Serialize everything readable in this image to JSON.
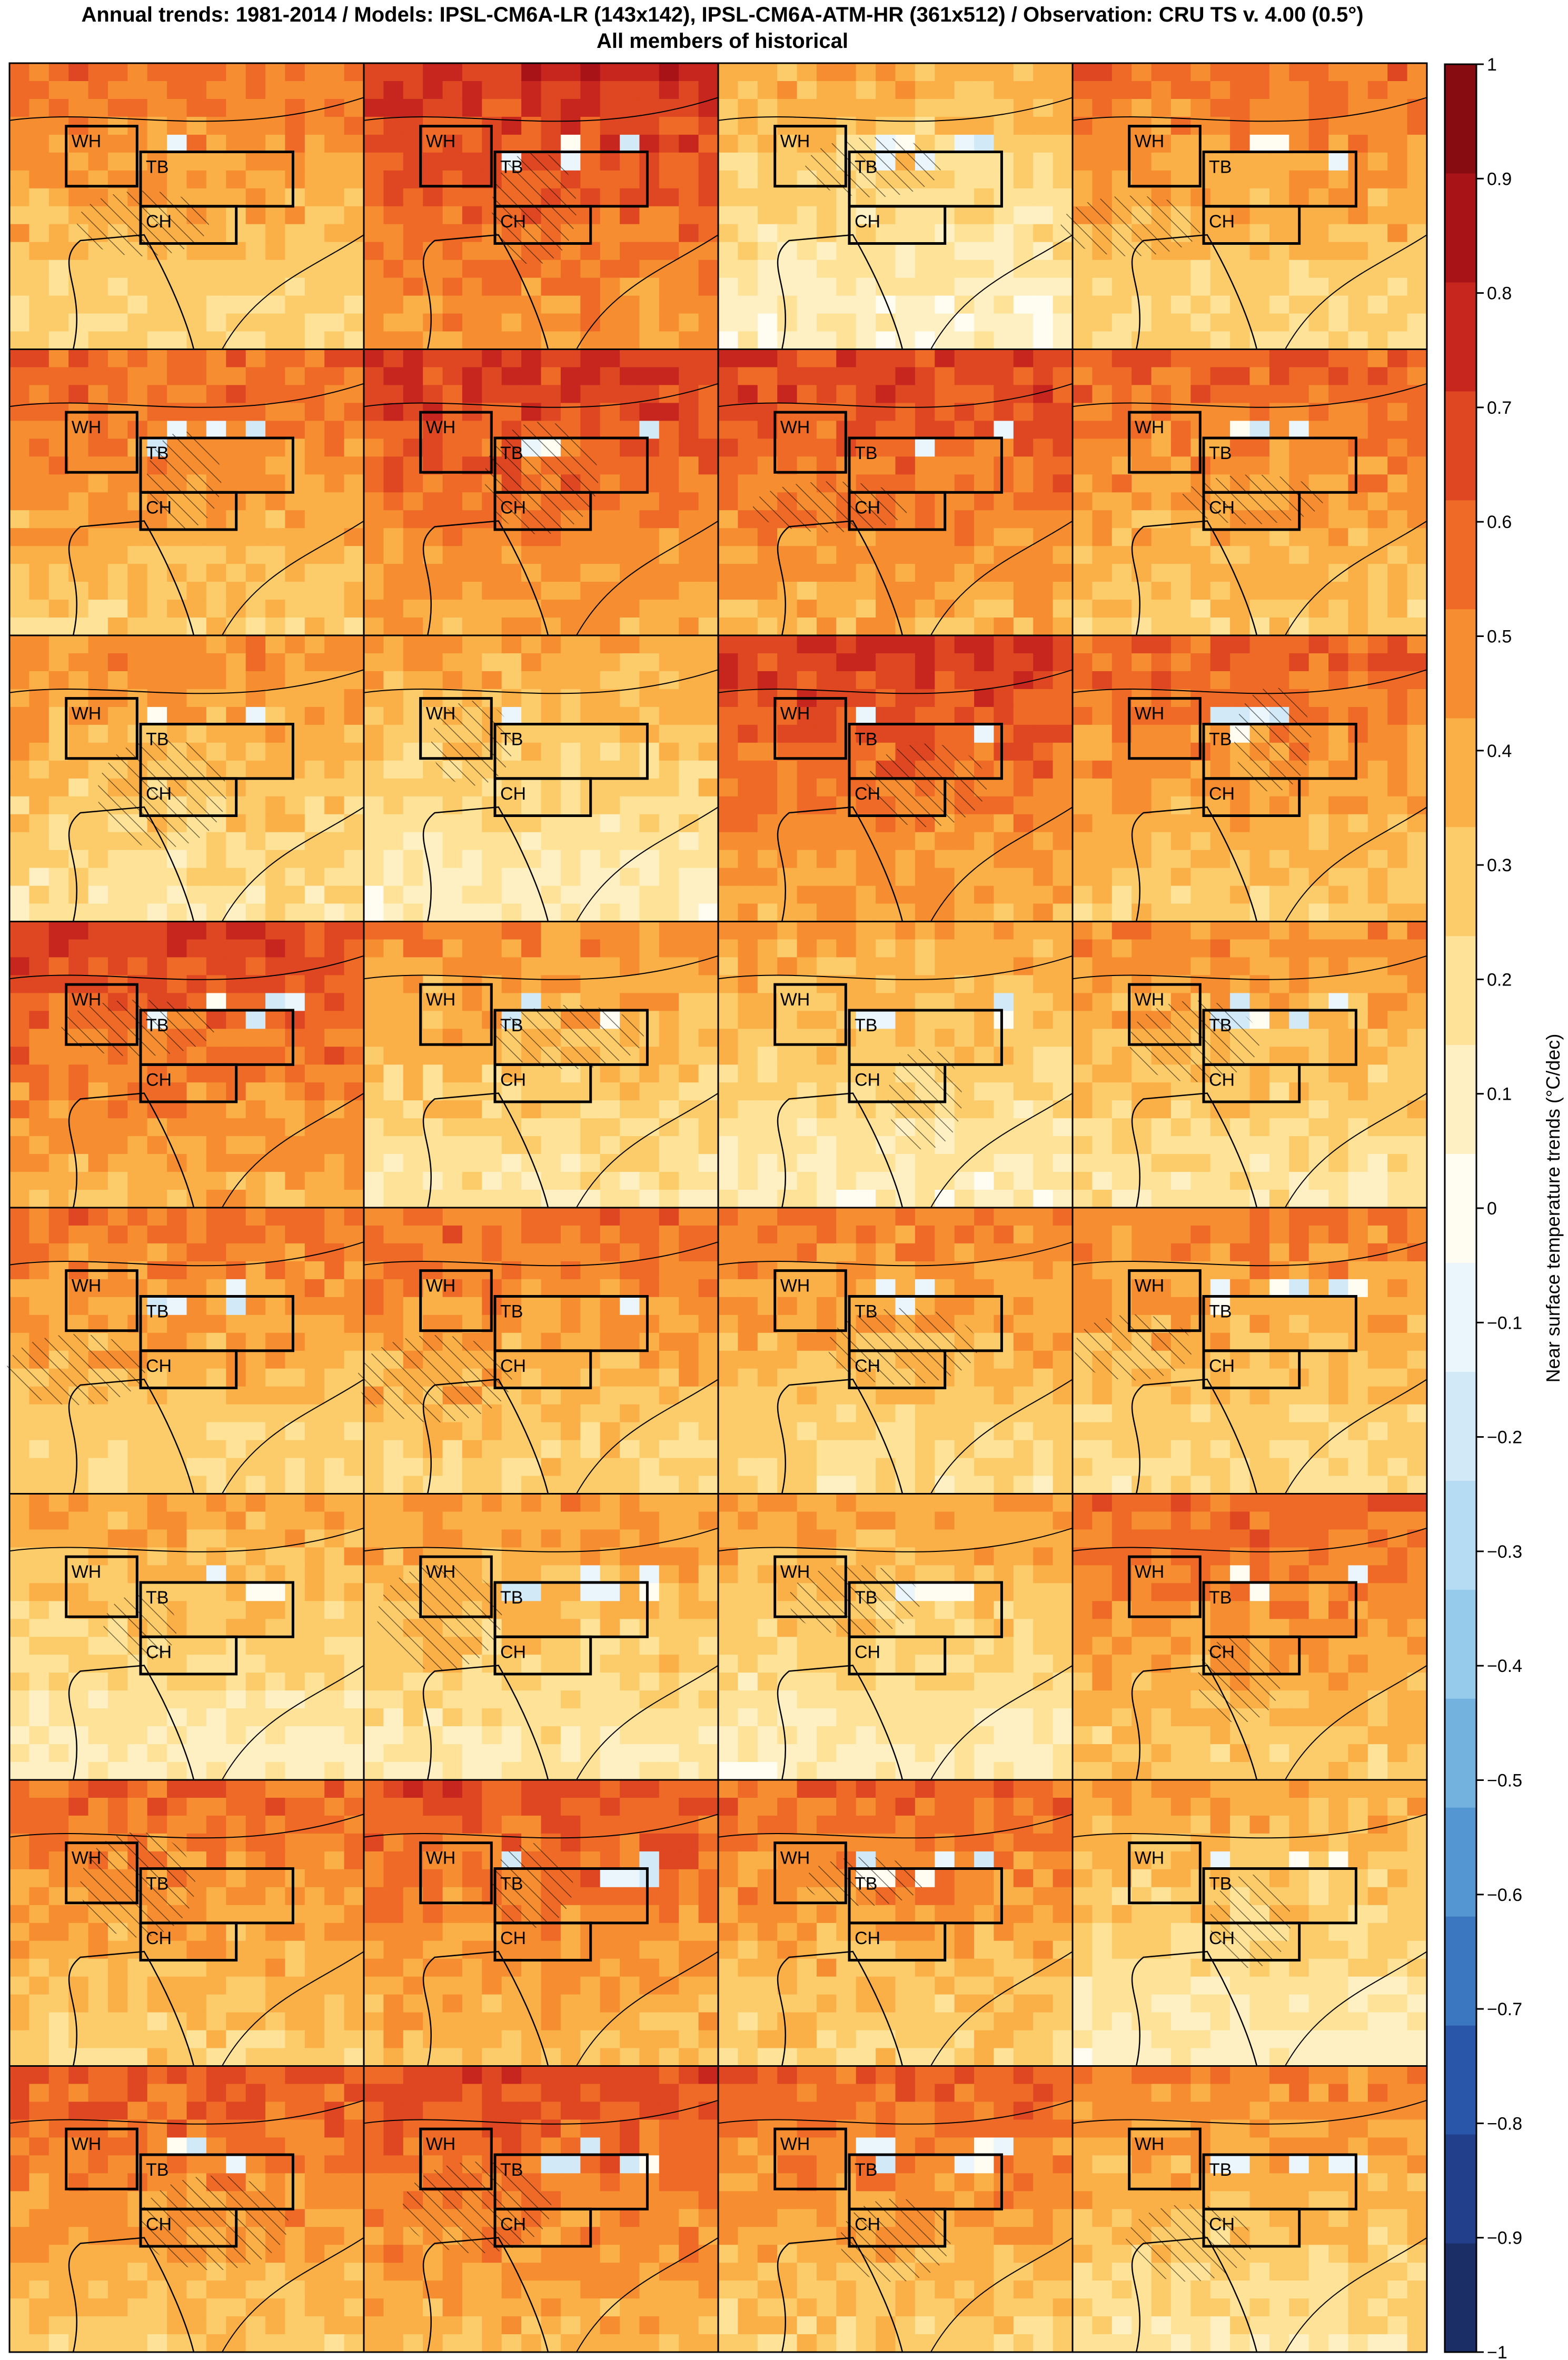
{
  "header": {
    "title_line1": "Annual trends: 1981-2014 / Models: IPSL-CM6A-LR (143x142), IPSL-CM6A-ATM-HR (361x512) / Observation: CRU TS v. 4.00 (0.5°)",
    "title_line2": "All members of historical"
  },
  "chart_data": {
    "type": "heatmap",
    "layout": {
      "rows": 8,
      "cols": 4
    },
    "region_labels": [
      "WH",
      "TB",
      "CH"
    ],
    "colorbar": {
      "label": "Near surface temperature trends (°C/dec)",
      "range": [
        -1,
        1
      ],
      "ticks": [
        1,
        0.9,
        0.8,
        0.7,
        0.6,
        0.5,
        0.4,
        0.3,
        0.2,
        0.1,
        0,
        -0.1,
        -0.2,
        -0.3,
        -0.4,
        -0.5,
        -0.6,
        -0.7,
        -0.8,
        -0.9,
        -1
      ],
      "tick_labels": [
        "1",
        "0.9",
        "0.8",
        "0.7",
        "0.6",
        "0.5",
        "0.4",
        "0.3",
        "0.2",
        "0.1",
        "0",
        "−0.1",
        "−0.2",
        "−0.3",
        "−0.4",
        "−0.5",
        "−0.6",
        "−0.7",
        "−0.8",
        "−0.9",
        "−1"
      ],
      "colors": [
        "#1b2e66",
        "#213f8b",
        "#2a56a9",
        "#3b76c0",
        "#5496d2",
        "#73b1df",
        "#96cbec",
        "#b6dcf3",
        "#d2eaf8",
        "#eaf5fc",
        "#fffdf2",
        "#fff0c4",
        "#fde297",
        "#fccc6b",
        "#fbaf47",
        "#f68e31",
        "#ee6a26",
        "#de4721",
        "#c6261d",
        "#a81318",
        "#870c11"
      ]
    },
    "panels_mean_trend": [
      [
        0.45,
        0.65,
        0.28,
        0.45
      ],
      [
        0.5,
        0.62,
        0.6,
        0.5
      ],
      [
        0.38,
        0.32,
        0.62,
        0.5
      ],
      [
        0.6,
        0.38,
        0.32,
        0.38
      ],
      [
        0.45,
        0.47,
        0.42,
        0.42
      ],
      [
        0.32,
        0.36,
        0.33,
        0.5
      ],
      [
        0.48,
        0.55,
        0.48,
        0.32
      ],
      [
        0.52,
        0.57,
        0.5,
        0.4
      ]
    ]
  }
}
